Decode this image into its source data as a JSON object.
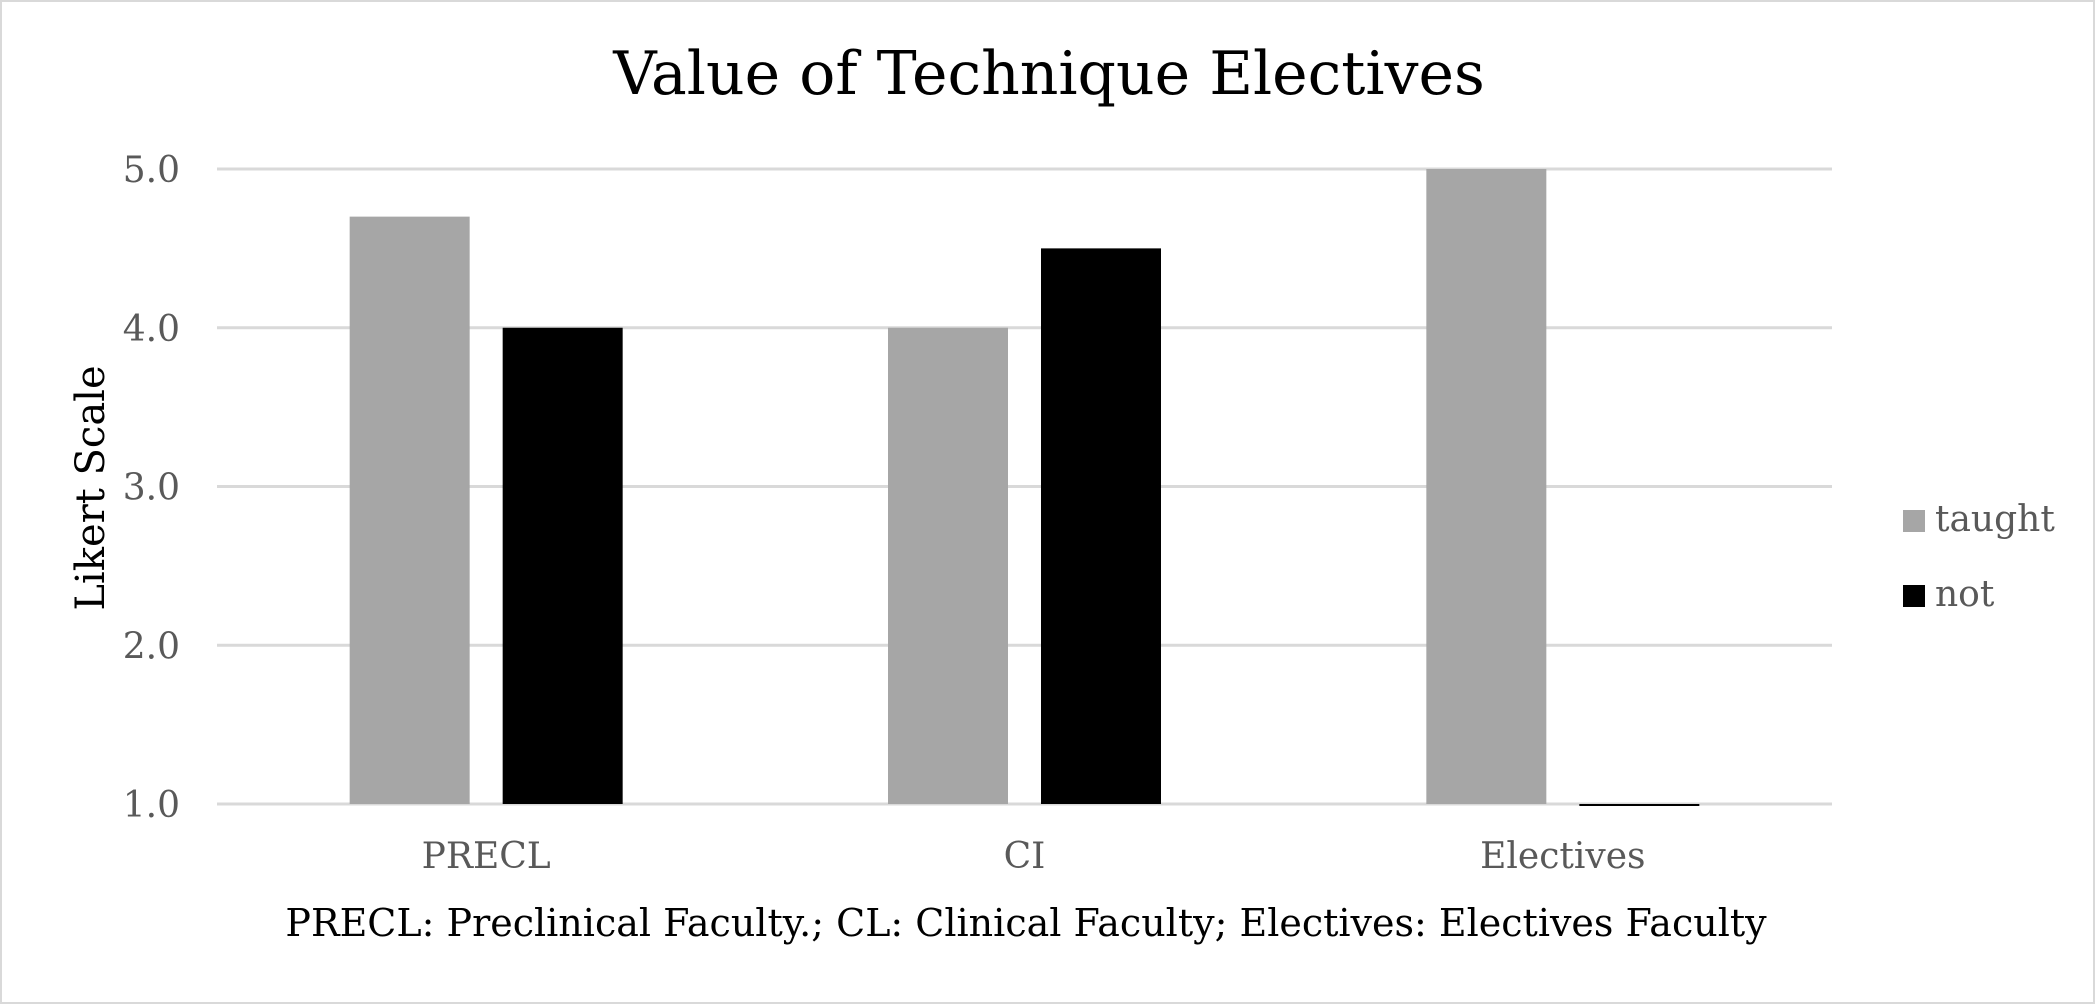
{
  "chart_data": {
    "type": "bar",
    "title": "Value of Technique Electives",
    "xlabel": "PRECL: Preclinical Faculty.; CL: Clinical Faculty; Electives: Electives Faculty",
    "ylabel": "Likert Scale",
    "categories": [
      "PRECL",
      "CI",
      "Electives"
    ],
    "series": [
      {
        "name": "taught",
        "color": "#a6a6a6",
        "values": [
          4.7,
          4.0,
          5.0
        ]
      },
      {
        "name": "not",
        "color": "#000000",
        "values": [
          4.0,
          4.5,
          1.0
        ]
      }
    ],
    "ylim": [
      1.0,
      5.0
    ],
    "yticks": [
      "1.0",
      "2.0",
      "3.0",
      "4.0",
      "5.0"
    ],
    "grid": true,
    "gridline_color": "#d9d9d9",
    "legend_position": "right"
  }
}
